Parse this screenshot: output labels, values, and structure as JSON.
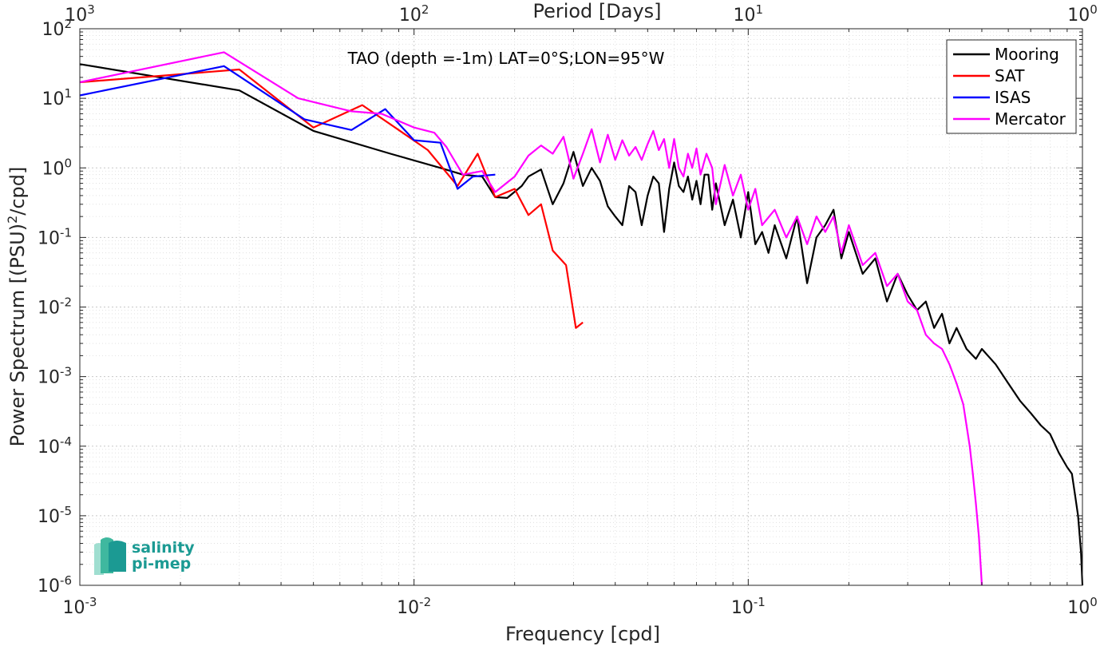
{
  "chart_data": {
    "type": "line",
    "title": "TAO (depth =-1m) LAT=0°S;LON=95°W",
    "xlabel": "Frequency [cpd]",
    "ylabel": "Power Spectrum [(PSU)²/cpd]",
    "ylabel_parts": {
      "before": "Power Spectrum [(PSU)",
      "sup": "2",
      "after": "/cpd]"
    },
    "top_xlabel": "Period [Days]",
    "x_scale": "log",
    "y_scale": "log",
    "xlim": [
      0.001,
      1
    ],
    "ylim": [
      1e-06,
      100
    ],
    "grid": true,
    "legend_position": "top-right",
    "x_ticks": [
      {
        "value": 0.001,
        "base": "10",
        "exp": "-3"
      },
      {
        "value": 0.01,
        "base": "10",
        "exp": "-2"
      },
      {
        "value": 0.1,
        "base": "10",
        "exp": "-1"
      },
      {
        "value": 1,
        "base": "10",
        "exp": "0"
      }
    ],
    "top_ticks": [
      {
        "value": 0.001,
        "base": "10",
        "exp": "3"
      },
      {
        "value": 0.01,
        "base": "10",
        "exp": "2"
      },
      {
        "value": 0.1,
        "base": "10",
        "exp": "1"
      },
      {
        "value": 1,
        "base": "10",
        "exp": "0"
      }
    ],
    "y_ticks": [
      {
        "value": 1e-06,
        "base": "10",
        "exp": "-6"
      },
      {
        "value": 1e-05,
        "base": "10",
        "exp": "-5"
      },
      {
        "value": 0.0001,
        "base": "10",
        "exp": "-4"
      },
      {
        "value": 0.001,
        "base": "10",
        "exp": "-3"
      },
      {
        "value": 0.01,
        "base": "10",
        "exp": "-2"
      },
      {
        "value": 0.1,
        "base": "10",
        "exp": "-1"
      },
      {
        "value": 1,
        "base": "10",
        "exp": "0"
      },
      {
        "value": 10,
        "base": "10",
        "exp": "1"
      },
      {
        "value": 100,
        "base": "10",
        "exp": "2"
      }
    ],
    "series": [
      {
        "name": "Mooring",
        "color": "#000000",
        "points": [
          [
            0.001,
            31
          ],
          [
            0.003,
            13
          ],
          [
            0.005,
            3.4
          ],
          [
            0.0085,
            1.6
          ],
          [
            0.012,
            1.0
          ],
          [
            0.014,
            0.8
          ],
          [
            0.016,
            0.75
          ],
          [
            0.0175,
            0.38
          ],
          [
            0.019,
            0.37
          ],
          [
            0.021,
            0.55
          ],
          [
            0.022,
            0.75
          ],
          [
            0.024,
            0.95
          ],
          [
            0.026,
            0.3
          ],
          [
            0.028,
            0.6
          ],
          [
            0.03,
            1.7
          ],
          [
            0.032,
            0.55
          ],
          [
            0.034,
            1.0
          ],
          [
            0.036,
            0.65
          ],
          [
            0.038,
            0.28
          ],
          [
            0.04,
            0.2
          ],
          [
            0.042,
            0.15
          ],
          [
            0.044,
            0.55
          ],
          [
            0.046,
            0.45
          ],
          [
            0.048,
            0.15
          ],
          [
            0.05,
            0.4
          ],
          [
            0.052,
            0.75
          ],
          [
            0.054,
            0.6
          ],
          [
            0.056,
            0.12
          ],
          [
            0.058,
            0.5
          ],
          [
            0.06,
            1.2
          ],
          [
            0.062,
            0.55
          ],
          [
            0.064,
            0.45
          ],
          [
            0.066,
            0.75
          ],
          [
            0.068,
            0.35
          ],
          [
            0.07,
            0.65
          ],
          [
            0.072,
            0.3
          ],
          [
            0.074,
            0.8
          ],
          [
            0.076,
            0.8
          ],
          [
            0.078,
            0.25
          ],
          [
            0.08,
            0.6
          ],
          [
            0.085,
            0.15
          ],
          [
            0.09,
            0.35
          ],
          [
            0.095,
            0.1
          ],
          [
            0.1,
            0.45
          ],
          [
            0.105,
            0.08
          ],
          [
            0.11,
            0.12
          ],
          [
            0.115,
            0.06
          ],
          [
            0.12,
            0.15
          ],
          [
            0.13,
            0.05
          ],
          [
            0.14,
            0.2
          ],
          [
            0.15,
            0.022
          ],
          [
            0.16,
            0.1
          ],
          [
            0.17,
            0.15
          ],
          [
            0.18,
            0.25
          ],
          [
            0.19,
            0.05
          ],
          [
            0.2,
            0.12
          ],
          [
            0.22,
            0.03
          ],
          [
            0.24,
            0.05
          ],
          [
            0.26,
            0.012
          ],
          [
            0.28,
            0.03
          ],
          [
            0.3,
            0.015
          ],
          [
            0.32,
            0.009
          ],
          [
            0.34,
            0.012
          ],
          [
            0.36,
            0.005
          ],
          [
            0.38,
            0.008
          ],
          [
            0.4,
            0.003
          ],
          [
            0.42,
            0.005
          ],
          [
            0.45,
            0.0025
          ],
          [
            0.48,
            0.0018
          ],
          [
            0.5,
            0.0025
          ],
          [
            0.55,
            0.0015
          ],
          [
            0.6,
            0.0008
          ],
          [
            0.65,
            0.00045
          ],
          [
            0.7,
            0.0003
          ],
          [
            0.75,
            0.0002
          ],
          [
            0.8,
            0.00015
          ],
          [
            0.85,
            8e-05
          ],
          [
            0.9,
            5e-05
          ],
          [
            0.93,
            4e-05
          ],
          [
            0.95,
            2e-05
          ],
          [
            0.97,
            1e-05
          ],
          [
            0.99,
            3e-06
          ],
          [
            1.0,
            1e-06
          ]
        ]
      },
      {
        "name": "SAT",
        "color": "#ff0000",
        "points": [
          [
            0.001,
            17
          ],
          [
            0.003,
            26
          ],
          [
            0.005,
            3.8
          ],
          [
            0.007,
            8
          ],
          [
            0.009,
            3.5
          ],
          [
            0.011,
            1.8
          ],
          [
            0.0135,
            0.55
          ],
          [
            0.0155,
            1.6
          ],
          [
            0.0175,
            0.38
          ],
          [
            0.02,
            0.5
          ],
          [
            0.022,
            0.21
          ],
          [
            0.024,
            0.3
          ],
          [
            0.026,
            0.065
          ],
          [
            0.0285,
            0.04
          ],
          [
            0.0305,
            0.005
          ],
          [
            0.032,
            0.006
          ]
        ]
      },
      {
        "name": "ISAS",
        "color": "#0000ff",
        "points": [
          [
            0.001,
            11
          ],
          [
            0.0027,
            29
          ],
          [
            0.0047,
            5
          ],
          [
            0.0065,
            3.5
          ],
          [
            0.0082,
            7
          ],
          [
            0.01,
            2.5
          ],
          [
            0.012,
            2.3
          ],
          [
            0.0135,
            0.5
          ],
          [
            0.015,
            0.75
          ],
          [
            0.0175,
            0.8
          ]
        ]
      },
      {
        "name": "Mercator",
        "color": "#ff00ff",
        "points": [
          [
            0.001,
            17
          ],
          [
            0.0027,
            46
          ],
          [
            0.0045,
            10
          ],
          [
            0.0065,
            6.5
          ],
          [
            0.008,
            6
          ],
          [
            0.01,
            3.8
          ],
          [
            0.0115,
            3.2
          ],
          [
            0.0125,
            2.0
          ],
          [
            0.014,
            0.8
          ],
          [
            0.016,
            0.9
          ],
          [
            0.0175,
            0.45
          ],
          [
            0.02,
            0.75
          ],
          [
            0.022,
            1.5
          ],
          [
            0.024,
            2.1
          ],
          [
            0.026,
            1.6
          ],
          [
            0.028,
            2.8
          ],
          [
            0.03,
            0.7
          ],
          [
            0.032,
            1.6
          ],
          [
            0.034,
            3.6
          ],
          [
            0.036,
            1.2
          ],
          [
            0.038,
            3.0
          ],
          [
            0.04,
            1.3
          ],
          [
            0.042,
            2.5
          ],
          [
            0.044,
            1.5
          ],
          [
            0.046,
            2.0
          ],
          [
            0.048,
            1.3
          ],
          [
            0.05,
            2.2
          ],
          [
            0.052,
            3.4
          ],
          [
            0.054,
            1.8
          ],
          [
            0.056,
            2.6
          ],
          [
            0.058,
            1.0
          ],
          [
            0.06,
            2.6
          ],
          [
            0.062,
            1.0
          ],
          [
            0.064,
            0.75
          ],
          [
            0.066,
            1.6
          ],
          [
            0.068,
            1.0
          ],
          [
            0.07,
            1.9
          ],
          [
            0.072,
            0.8
          ],
          [
            0.075,
            1.6
          ],
          [
            0.078,
            1.0
          ],
          [
            0.08,
            0.3
          ],
          [
            0.085,
            1.1
          ],
          [
            0.09,
            0.4
          ],
          [
            0.095,
            0.8
          ],
          [
            0.1,
            0.25
          ],
          [
            0.105,
            0.5
          ],
          [
            0.11,
            0.15
          ],
          [
            0.12,
            0.25
          ],
          [
            0.13,
            0.1
          ],
          [
            0.14,
            0.2
          ],
          [
            0.15,
            0.08
          ],
          [
            0.16,
            0.2
          ],
          [
            0.17,
            0.12
          ],
          [
            0.18,
            0.2
          ],
          [
            0.19,
            0.06
          ],
          [
            0.2,
            0.15
          ],
          [
            0.22,
            0.04
          ],
          [
            0.24,
            0.06
          ],
          [
            0.26,
            0.02
          ],
          [
            0.28,
            0.03
          ],
          [
            0.3,
            0.012
          ],
          [
            0.32,
            0.009
          ],
          [
            0.34,
            0.004
          ],
          [
            0.36,
            0.003
          ],
          [
            0.38,
            0.0025
          ],
          [
            0.4,
            0.0015
          ],
          [
            0.42,
            0.0008
          ],
          [
            0.44,
            0.0004
          ],
          [
            0.46,
            0.0001
          ],
          [
            0.47,
            4e-05
          ],
          [
            0.48,
            1.5e-05
          ],
          [
            0.49,
            5e-06
          ],
          [
            0.5,
            1e-06
          ]
        ]
      }
    ]
  },
  "logo": {
    "line1": "salinity",
    "line2": "pi-mep"
  }
}
